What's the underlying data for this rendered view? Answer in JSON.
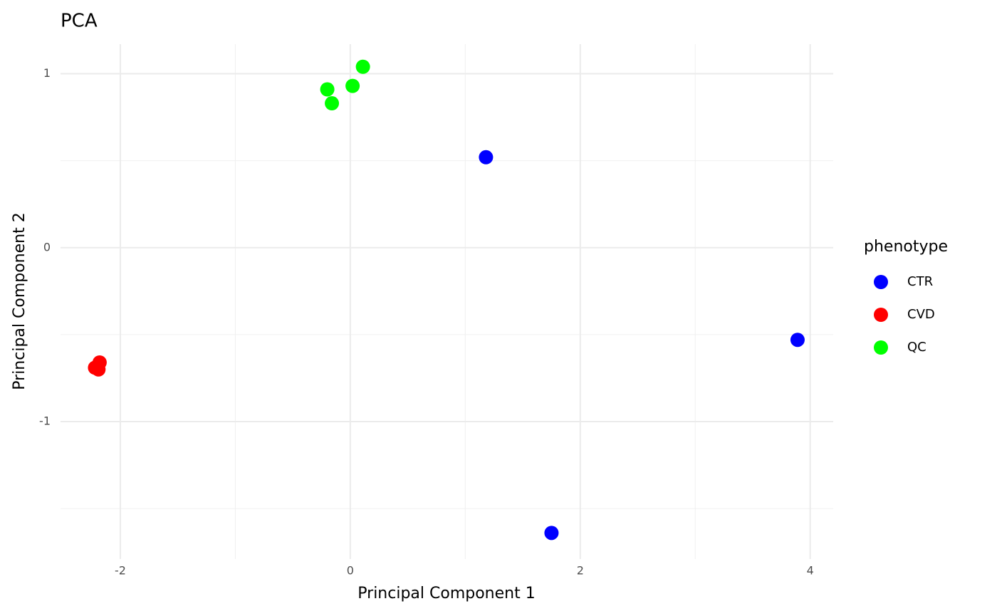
{
  "chart_data": {
    "type": "scatter",
    "title": "PCA",
    "x_label": "Principal Component 1",
    "y_label": "Principal Component 2",
    "legend_title": "phenotype",
    "legend_position": "right",
    "series": [
      {
        "name": "CTR",
        "color": "#0000ff",
        "x": [
          1.18,
          3.89,
          1.75
        ],
        "y": [
          0.52,
          -0.53,
          -1.64
        ]
      },
      {
        "name": "CVD",
        "color": "#ff0000",
        "x": [
          -2.18,
          -2.22,
          -2.19
        ],
        "y": [
          -0.66,
          -0.69,
          -0.7
        ]
      },
      {
        "name": "QC",
        "color": "#00ff00",
        "x": [
          0.11,
          -0.2,
          -0.16,
          0.02
        ],
        "y": [
          1.04,
          0.91,
          0.83,
          0.93
        ]
      }
    ],
    "xlim": [
      -2.52,
      4.2
    ],
    "ylim": [
      -1.79,
      1.17
    ],
    "xticks": [
      -2,
      0,
      2,
      4
    ],
    "yticks": [
      -1,
      0,
      1
    ],
    "minor_xticks": [
      -1,
      1,
      3
    ],
    "minor_yticks": [
      -1.5,
      -0.5,
      0.5
    ],
    "grid": true
  }
}
